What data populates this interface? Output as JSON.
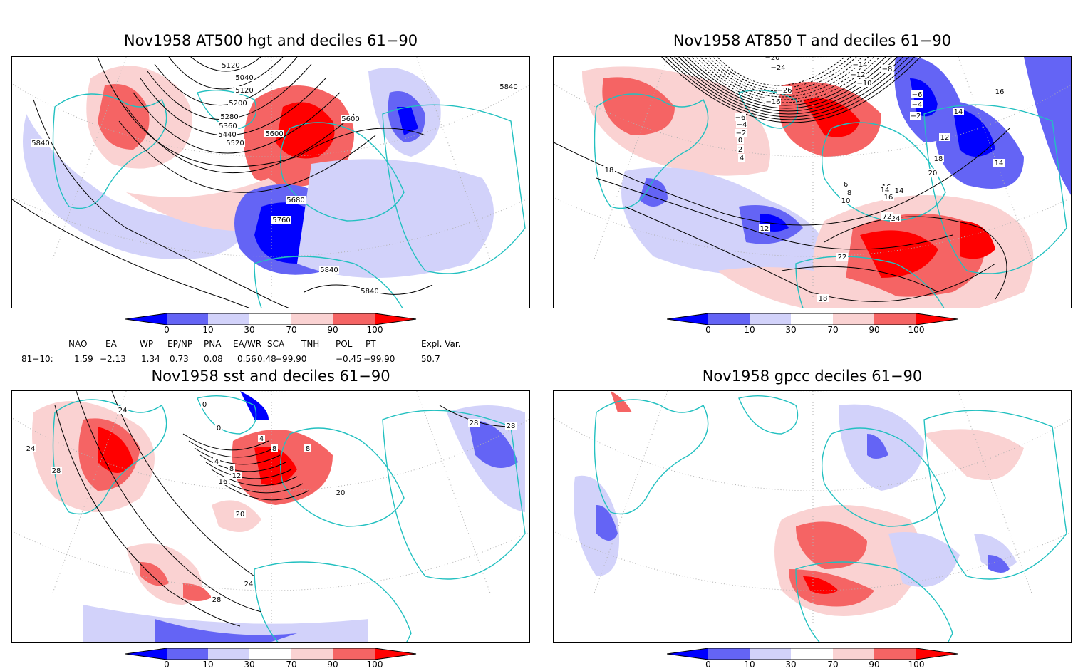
{
  "panels": [
    {
      "title": "Nov1958 AT500 hgt and deciles 61−90",
      "labels": [
        "5120",
        "5040",
        "5120",
        "5200",
        "5280",
        "5360",
        "5440",
        "5520",
        "5600",
        "5600",
        "5680",
        "5760",
        "5840",
        "5840",
        "5840",
        "5840"
      ]
    },
    {
      "title": "Nov1958 AT850 T and deciles 61−90",
      "labels": [
        "−20",
        "−24",
        "−14",
        "−12",
        "−10",
        "−8",
        "−26",
        "−16",
        "−6",
        "−4",
        "−2",
        "0",
        "2",
        "4",
        "6",
        "8",
        "10",
        "12",
        "14",
        "16",
        "16",
        "18",
        "18",
        "20",
        "22",
        "24",
        "72",
        "14",
        "−6",
        "−4",
        "−2",
        "12",
        "14",
        "14",
        "16",
        "18"
      ]
    },
    {
      "title": "Nov1958 sst and deciles 61−90",
      "labels": [
        "24",
        "28",
        "24",
        "0",
        "0",
        "4",
        "8",
        "12",
        "16",
        "20",
        "24",
        "28",
        "28",
        "28",
        "20",
        "4",
        "8",
        "8"
      ]
    },
    {
      "title": "Nov1958 gpcc deciles 61−90",
      "labels": []
    }
  ],
  "colorbar": {
    "ticks": [
      "0",
      "10",
      "30",
      "70",
      "90",
      "100"
    ],
    "colors": {
      "deep_blue": "#0000ff",
      "mid_blue": "#6464f5",
      "light_blue": "#d2d2fa",
      "white": "#ffffff",
      "light_red": "#fad2d2",
      "mid_red": "#f56464",
      "deep_red": "#ff0000"
    }
  },
  "indices": {
    "headers": [
      "NAO",
      "EA",
      "WP",
      "EP/NP",
      "PNA",
      "EA/WR",
      "SCA",
      "TNH",
      "POL",
      "PT",
      "Expl. Var."
    ],
    "row_label": "81−10:",
    "values": [
      "1.59",
      "−2.13",
      "1.34",
      "0.73",
      "0.08",
      "0.56",
      "0.48",
      "−99.90",
      "−0.45",
      "−99.90",
      "50.7"
    ]
  },
  "map_style": {
    "coast_color": "#22c0c0",
    "contour_color": "#000000",
    "grid_color": "#b0b0b0"
  }
}
